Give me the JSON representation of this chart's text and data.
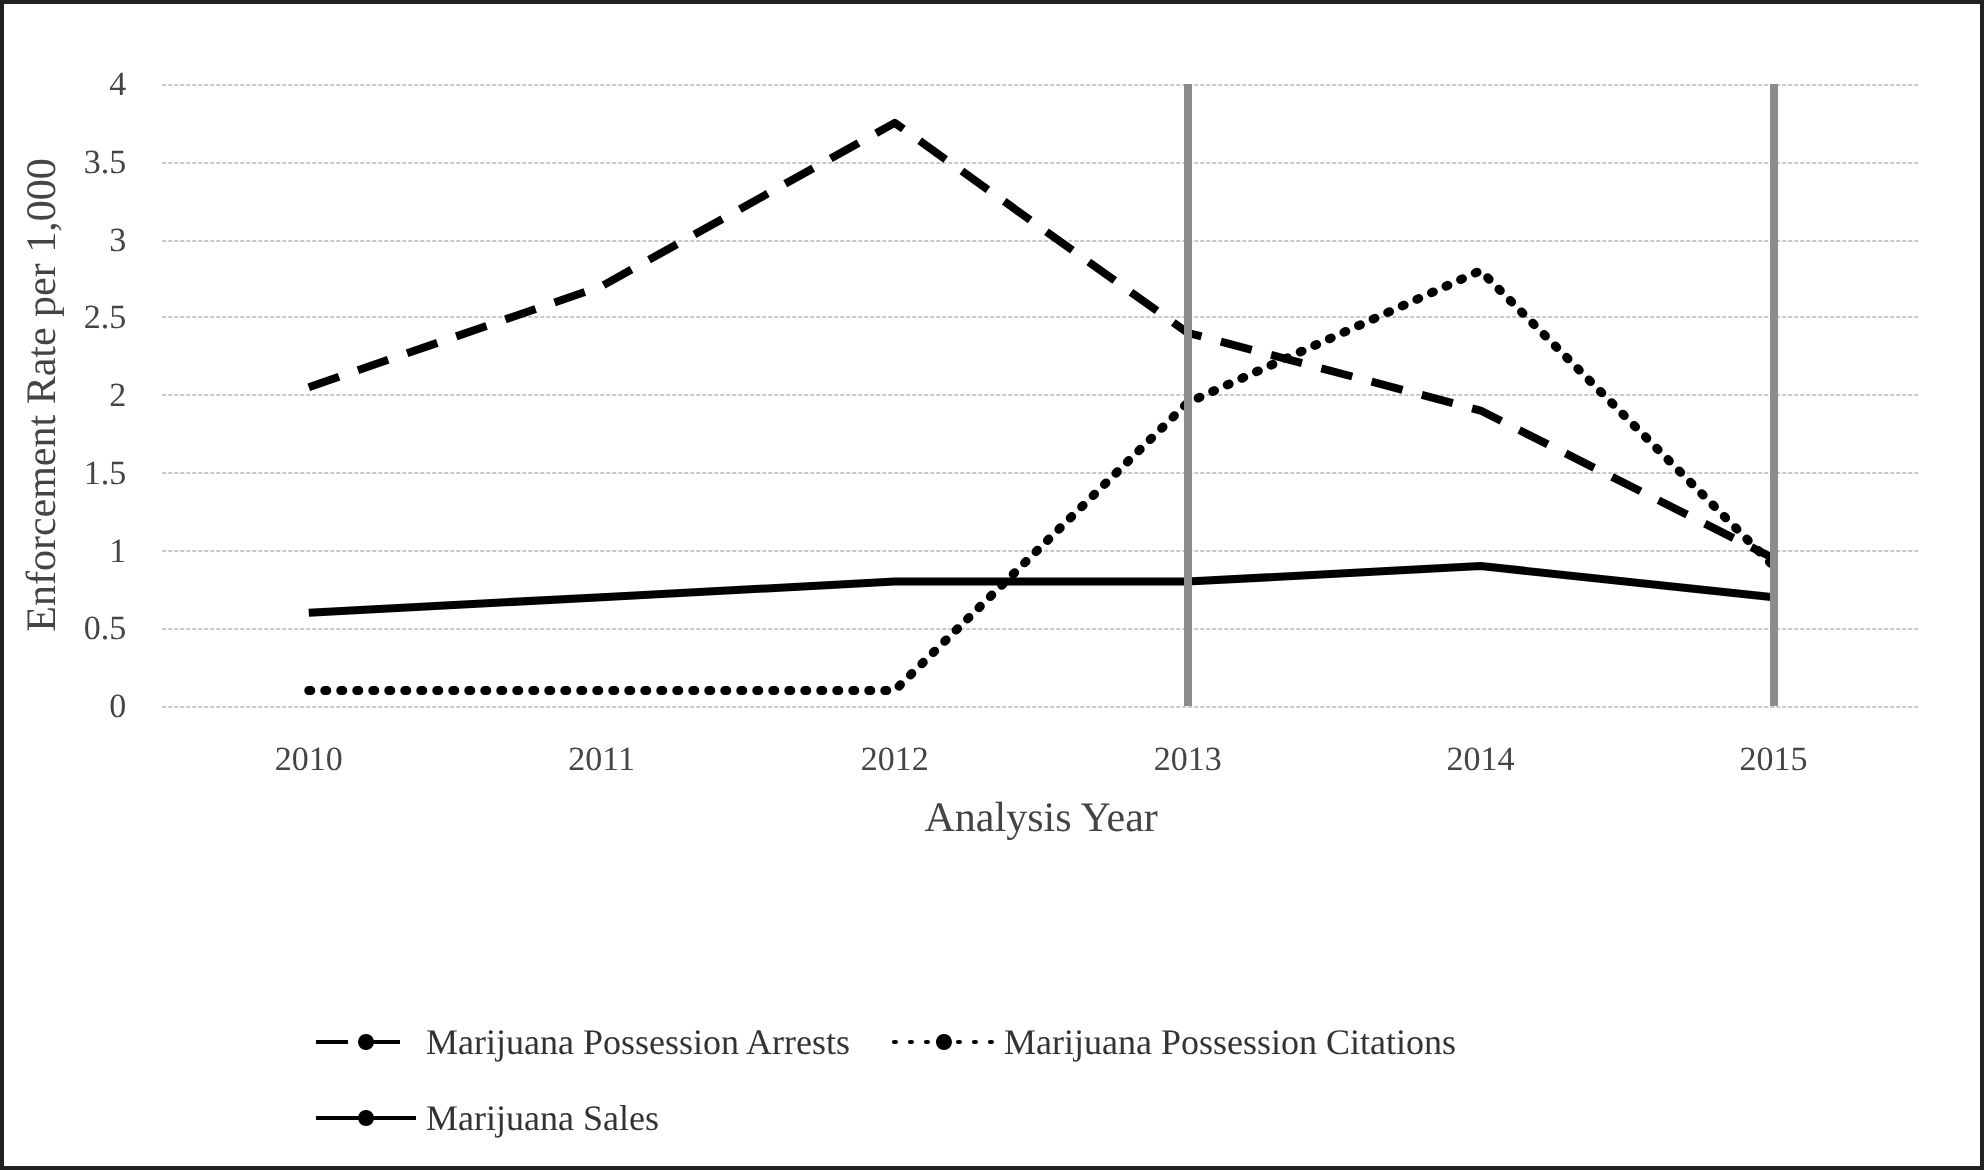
{
  "chart_data": {
    "type": "line",
    "xlabel": "Analysis Year",
    "ylabel": "Enforcement Rate per 1,000",
    "categories": [
      "2010",
      "2011",
      "2012",
      "2013",
      "2014",
      "2015"
    ],
    "series": [
      {
        "name": "Marijuana Possession Arrests",
        "color": "#000000",
        "line_style": "dashed",
        "values": [
          2.05,
          2.7,
          3.75,
          2.4,
          1.9,
          0.95
        ]
      },
      {
        "name": "Marijuana Possession Citations",
        "color": "#000000",
        "line_style": "dotted",
        "values": [
          0.1,
          0.1,
          0.1,
          1.95,
          2.8,
          0.9
        ]
      },
      {
        "name": "Marijuana Sales",
        "color": "#000000",
        "line_style": "solid",
        "values": [
          0.6,
          0.7,
          0.8,
          0.8,
          0.9,
          0.7
        ]
      }
    ],
    "ylim": [
      0,
      4
    ],
    "yticks": [
      0,
      0.5,
      1,
      1.5,
      2,
      2.5,
      3,
      3.5,
      4
    ],
    "grid": "y",
    "legend": "bottom",
    "marker": "none",
    "ref_lines": [
      {
        "axis": "x",
        "value": "2013",
        "color": "#8c8c8c"
      },
      {
        "axis": "x",
        "value": "2015",
        "color": "#8c8c8c"
      }
    ]
  }
}
